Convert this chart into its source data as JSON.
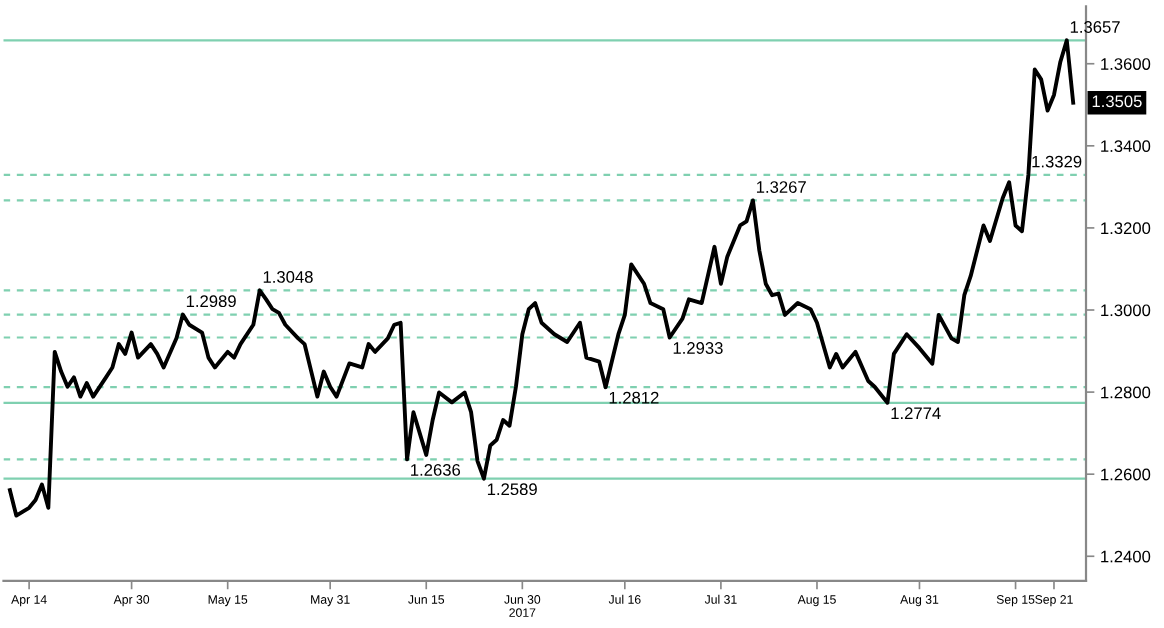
{
  "chart_data": {
    "type": "line",
    "x": [
      "2017-04-11",
      "2017-04-12",
      "2017-04-14",
      "2017-04-15",
      "2017-04-16",
      "2017-04-17",
      "2017-04-18",
      "2017-04-19",
      "2017-04-20",
      "2017-04-21",
      "2017-04-22",
      "2017-04-23",
      "2017-04-24",
      "2017-04-26",
      "2017-04-27",
      "2017-04-28",
      "2017-04-29",
      "2017-04-30",
      "2017-05-01",
      "2017-05-03",
      "2017-05-04",
      "2017-05-05",
      "2017-05-07",
      "2017-05-08",
      "2017-05-09",
      "2017-05-11",
      "2017-05-12",
      "2017-05-13",
      "2017-05-15",
      "2017-05-16",
      "2017-05-17",
      "2017-05-19",
      "2017-05-20",
      "2017-05-21",
      "2017-05-22",
      "2017-05-23",
      "2017-05-24",
      "2017-05-26",
      "2017-05-27",
      "2017-05-29",
      "2017-05-30",
      "2017-05-31",
      "2017-06-01",
      "2017-06-03",
      "2017-06-05",
      "2017-06-06",
      "2017-06-07",
      "2017-06-09",
      "2017-06-10",
      "2017-06-11",
      "2017-06-12",
      "2017-06-13",
      "2017-06-15",
      "2017-06-16",
      "2017-06-17",
      "2017-06-19",
      "2017-06-21",
      "2017-06-22",
      "2017-06-23",
      "2017-06-24",
      "2017-06-25",
      "2017-06-26",
      "2017-06-27",
      "2017-06-28",
      "2017-06-29",
      "2017-06-30",
      "2017-07-01",
      "2017-07-02",
      "2017-07-03",
      "2017-07-05",
      "2017-07-07",
      "2017-07-09",
      "2017-07-10",
      "2017-07-12",
      "2017-07-13",
      "2017-07-15",
      "2017-07-16",
      "2017-07-17",
      "2017-07-19",
      "2017-07-20",
      "2017-07-22",
      "2017-07-23",
      "2017-07-25",
      "2017-07-26",
      "2017-07-28",
      "2017-07-30",
      "2017-07-31",
      "2017-08-01",
      "2017-08-03",
      "2017-08-04",
      "2017-08-05",
      "2017-08-06",
      "2017-08-07",
      "2017-08-08",
      "2017-08-09",
      "2017-08-10",
      "2017-08-12",
      "2017-08-14",
      "2017-08-15",
      "2017-08-17",
      "2017-08-18",
      "2017-08-19",
      "2017-08-21",
      "2017-08-23",
      "2017-08-24",
      "2017-08-26",
      "2017-08-27",
      "2017-08-29",
      "2017-08-31",
      "2017-09-02",
      "2017-09-03",
      "2017-09-05",
      "2017-09-06",
      "2017-09-07",
      "2017-09-08",
      "2017-09-10",
      "2017-09-11",
      "2017-09-13",
      "2017-09-14",
      "2017-09-15",
      "2017-09-16",
      "2017-09-17",
      "2017-09-18",
      "2017-09-19",
      "2017-09-20",
      "2017-09-21",
      "2017-09-22",
      "2017-09-23",
      "2017-09-24"
    ],
    "series": [
      {
        "color": "#000000",
        "values": [
          1.2561,
          1.2499,
          1.2518,
          1.2537,
          1.2575,
          1.2518,
          1.2898,
          1.285,
          1.2813,
          1.2836,
          1.2789,
          1.2822,
          1.2789,
          1.2836,
          1.286,
          1.2917,
          1.2893,
          1.2945,
          1.2884,
          1.2917,
          1.2893,
          1.286,
          1.2931,
          1.2989,
          1.2964,
          1.2945,
          1.2884,
          1.286,
          1.2898,
          1.2884,
          1.2917,
          1.2964,
          1.3048,
          1.3026,
          1.3002,
          1.2993,
          1.2964,
          1.2931,
          1.2917,
          1.2789,
          1.285,
          1.2813,
          1.2789,
          1.287,
          1.286,
          1.2917,
          1.2898,
          1.2931,
          1.2964,
          1.2969,
          1.2636,
          1.2751,
          1.2647,
          1.2732,
          1.2799,
          1.2775,
          1.2799,
          1.2751,
          1.2632,
          1.2589,
          1.267,
          1.2684,
          1.2732,
          1.2718,
          1.2813,
          1.2941,
          1.3002,
          1.3017,
          1.2969,
          1.2941,
          1.2922,
          1.2969,
          1.2884,
          1.2874,
          1.2812,
          1.2941,
          1.2988,
          1.3111,
          1.3064,
          1.3017,
          1.3002,
          1.2933,
          1.2979,
          1.3026,
          1.3017,
          1.3154,
          1.3064,
          1.313,
          1.3206,
          1.3216,
          1.3267,
          1.3145,
          1.3064,
          1.3036,
          1.304,
          1.2988,
          1.3017,
          1.3002,
          1.2969,
          1.286,
          1.2893,
          1.286,
          1.2898,
          1.2827,
          1.2813,
          1.2774,
          1.2893,
          1.2941,
          1.2907,
          1.2869,
          1.2988,
          1.2931,
          1.2922,
          1.3036,
          1.3083,
          1.3206,
          1.3168,
          1.3273,
          1.3311,
          1.3206,
          1.3192,
          1.3329,
          1.3586,
          1.3562,
          1.3486,
          1.3524,
          1.3605,
          1.3657,
          1.3505
        ]
      }
    ],
    "xlim": [
      "2017-04-10",
      "2017-09-26"
    ],
    "xticks": [
      {
        "value": "2017-04-14",
        "label": "Apr 14"
      },
      {
        "value": "2017-04-30",
        "label": "Apr 30"
      },
      {
        "value": "2017-05-15",
        "label": "May 15"
      },
      {
        "value": "2017-05-31",
        "label": "May 31"
      },
      {
        "value": "2017-06-15",
        "label": "Jun 15"
      },
      {
        "value": "2017-06-30",
        "label": "Jun 30\n2017"
      },
      {
        "value": "2017-07-16",
        "label": "Jul 16"
      },
      {
        "value": "2017-07-31",
        "label": "Jul 31"
      },
      {
        "value": "2017-08-15",
        "label": "Aug 15"
      },
      {
        "value": "2017-08-31",
        "label": "Aug 31"
      },
      {
        "value": "2017-09-15",
        "label": "Sep 15"
      },
      {
        "value": "2017-09-21",
        "label": "Sep 21"
      }
    ],
    "ylim": [
      1.234,
      1.374
    ],
    "yticks": [
      {
        "value": 1.24,
        "label": "1.2400"
      },
      {
        "value": 1.26,
        "label": "1.2600"
      },
      {
        "value": 1.28,
        "label": "1.2800"
      },
      {
        "value": 1.3,
        "label": "1.3000"
      },
      {
        "value": 1.32,
        "label": "1.3200"
      },
      {
        "value": 1.34,
        "label": "1.3400"
      },
      {
        "value": 1.36,
        "label": "1.3600"
      }
    ],
    "ref_lines": [
      {
        "axis": "y",
        "value": 1.3657,
        "color": "#7fd0b0",
        "line_style": "solid"
      },
      {
        "axis": "y",
        "value": 1.3329,
        "color": "#7fd0b0",
        "line_style": "dashed"
      },
      {
        "axis": "y",
        "value": 1.3267,
        "color": "#7fd0b0",
        "line_style": "dashed"
      },
      {
        "axis": "y",
        "value": 1.3048,
        "color": "#7fd0b0",
        "line_style": "dashed"
      },
      {
        "axis": "y",
        "value": 1.2989,
        "color": "#7fd0b0",
        "line_style": "dashed"
      },
      {
        "axis": "y",
        "value": 1.2933,
        "color": "#7fd0b0",
        "line_style": "dashed"
      },
      {
        "axis": "y",
        "value": 1.2812,
        "color": "#7fd0b0",
        "line_style": "dashed"
      },
      {
        "axis": "y",
        "value": 1.2774,
        "color": "#7fd0b0",
        "line_style": "solid"
      },
      {
        "axis": "y",
        "value": 1.2636,
        "color": "#7fd0b0",
        "line_style": "dashed"
      },
      {
        "axis": "y",
        "value": 1.2589,
        "color": "#7fd0b0",
        "line_style": "solid"
      }
    ],
    "annotations": [
      {
        "text": "1.2989",
        "x": "2017-05-08",
        "y": 1.2989
      },
      {
        "text": "1.3048",
        "x": "2017-05-20",
        "y": 1.3048
      },
      {
        "text": "1.2636",
        "x": "2017-06-12",
        "y": 1.2636
      },
      {
        "text": "1.2589",
        "x": "2017-06-24",
        "y": 1.2589
      },
      {
        "text": "1.2812",
        "x": "2017-07-13",
        "y": 1.2812
      },
      {
        "text": "1.2933",
        "x": "2017-07-23",
        "y": 1.2933
      },
      {
        "text": "1.3267",
        "x": "2017-08-05",
        "y": 1.3267
      },
      {
        "text": "1.2774",
        "x": "2017-08-26",
        "y": 1.2774
      },
      {
        "text": "1.3329",
        "x": "2017-09-17",
        "y": 1.3329
      },
      {
        "text": "1.3657",
        "x": "2017-09-23",
        "y": 1.3657
      },
      {
        "text": "1.3505",
        "y": 1.3505
      }
    ],
    "grid": false,
    "legend": false
  }
}
